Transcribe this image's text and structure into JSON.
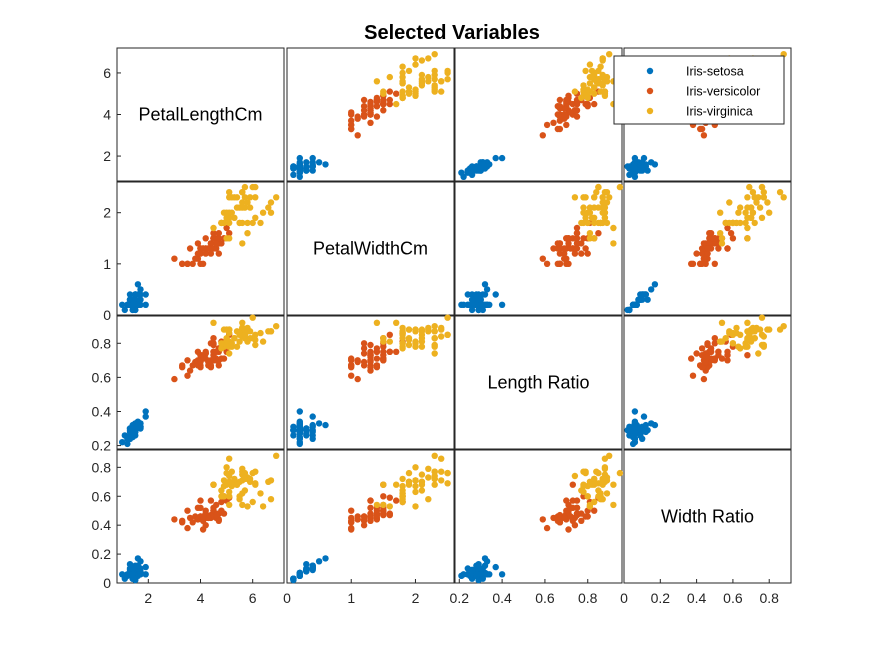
{
  "chart_data": {
    "type": "scatter",
    "title": "Selected Variables",
    "variables": [
      "PetalLengthCm",
      "PetalWidthCm",
      "Length Ratio",
      "Width Ratio"
    ],
    "series": [
      {
        "name": "Iris-setosa",
        "color": "#0072BD"
      },
      {
        "name": "Iris-versicolor",
        "color": "#D95319"
      },
      {
        "name": "Iris-virginica",
        "color": "#EDB120"
      }
    ],
    "axes": [
      {
        "lim": [
          0.8,
          7.2
        ],
        "ticks": [
          2,
          4,
          6
        ]
      },
      {
        "lim": [
          0,
          2.6
        ],
        "ticks": [
          0,
          1,
          2
        ]
      },
      {
        "lim": [
          0.18,
          0.96
        ],
        "ticks": [
          0.2,
          0.4,
          0.6,
          0.8
        ]
      },
      {
        "lim": [
          0,
          0.92
        ],
        "ticks": [
          0,
          0.2,
          0.4,
          0.6,
          0.8
        ]
      }
    ],
    "points": {
      "Iris-setosa": [
        [
          1.4,
          0.2,
          0.27,
          0.06
        ],
        [
          1.4,
          0.2,
          0.29,
          0.07
        ],
        [
          1.3,
          0.2,
          0.28,
          0.06
        ],
        [
          1.5,
          0.2,
          0.33,
          0.06
        ],
        [
          1.4,
          0.2,
          0.28,
          0.06
        ],
        [
          1.7,
          0.4,
          0.31,
          0.1
        ],
        [
          1.4,
          0.3,
          0.3,
          0.09
        ],
        [
          1.5,
          0.2,
          0.3,
          0.06
        ],
        [
          1.4,
          0.2,
          0.32,
          0.07
        ],
        [
          1.5,
          0.1,
          0.31,
          0.03
        ],
        [
          1.5,
          0.2,
          0.28,
          0.05
        ],
        [
          1.6,
          0.2,
          0.33,
          0.06
        ],
        [
          1.4,
          0.1,
          0.29,
          0.03
        ],
        [
          1.1,
          0.1,
          0.26,
          0.03
        ],
        [
          1.2,
          0.2,
          0.21,
          0.05
        ],
        [
          1.5,
          0.4,
          0.26,
          0.09
        ],
        [
          1.3,
          0.4,
          0.24,
          0.1
        ],
        [
          1.4,
          0.3,
          0.27,
          0.09
        ],
        [
          1.7,
          0.3,
          0.3,
          0.08
        ],
        [
          1.5,
          0.3,
          0.29,
          0.08
        ],
        [
          1.7,
          0.2,
          0.31,
          0.06
        ],
        [
          1.5,
          0.4,
          0.29,
          0.11
        ],
        [
          1.0,
          0.2,
          0.22,
          0.06
        ],
        [
          1.7,
          0.5,
          0.33,
          0.15
        ],
        [
          1.9,
          0.2,
          0.4,
          0.06
        ],
        [
          1.6,
          0.2,
          0.32,
          0.07
        ],
        [
          1.6,
          0.4,
          0.32,
          0.12
        ],
        [
          1.5,
          0.2,
          0.29,
          0.06
        ],
        [
          1.4,
          0.2,
          0.27,
          0.06
        ],
        [
          1.6,
          0.2,
          0.34,
          0.06
        ],
        [
          1.6,
          0.2,
          0.33,
          0.06
        ],
        [
          1.5,
          0.4,
          0.28,
          0.12
        ],
        [
          1.5,
          0.1,
          0.29,
          0.02
        ],
        [
          1.4,
          0.2,
          0.25,
          0.05
        ],
        [
          1.5,
          0.2,
          0.31,
          0.06
        ],
        [
          1.2,
          0.2,
          0.24,
          0.06
        ],
        [
          1.3,
          0.2,
          0.24,
          0.06
        ],
        [
          1.4,
          0.1,
          0.29,
          0.03
        ],
        [
          1.3,
          0.2,
          0.3,
          0.07
        ],
        [
          1.5,
          0.2,
          0.29,
          0.06
        ],
        [
          1.3,
          0.3,
          0.26,
          0.09
        ],
        [
          1.3,
          0.3,
          0.29,
          0.13
        ],
        [
          1.3,
          0.2,
          0.3,
          0.06
        ],
        [
          1.6,
          0.6,
          0.32,
          0.17
        ],
        [
          1.9,
          0.4,
          0.37,
          0.11
        ],
        [
          1.4,
          0.3,
          0.29,
          0.1
        ],
        [
          1.6,
          0.2,
          0.31,
          0.05
        ],
        [
          1.4,
          0.2,
          0.3,
          0.06
        ],
        [
          1.5,
          0.2,
          0.28,
          0.05
        ],
        [
          1.4,
          0.2,
          0.28,
          0.06
        ]
      ],
      "Iris-versicolor": [
        [
          4.7,
          1.4,
          0.67,
          0.44
        ],
        [
          4.5,
          1.5,
          0.7,
          0.47
        ],
        [
          4.9,
          1.5,
          0.71,
          0.48
        ],
        [
          4.0,
          1.3,
          0.73,
          0.57
        ],
        [
          4.6,
          1.5,
          0.71,
          0.54
        ],
        [
          4.5,
          1.3,
          0.79,
          0.46
        ],
        [
          4.7,
          1.6,
          0.75,
          0.48
        ],
        [
          3.3,
          1.0,
          0.67,
          0.42
        ],
        [
          4.6,
          1.3,
          0.7,
          0.45
        ],
        [
          3.9,
          1.4,
          0.75,
          0.52
        ],
        [
          3.5,
          1.0,
          0.7,
          0.5
        ],
        [
          4.2,
          1.5,
          0.71,
          0.5
        ],
        [
          4.0,
          1.0,
          0.67,
          0.45
        ],
        [
          4.7,
          1.4,
          0.77,
          0.48
        ],
        [
          3.6,
          1.3,
          0.64,
          0.45
        ],
        [
          4.4,
          1.4,
          0.66,
          0.45
        ],
        [
          4.5,
          1.5,
          0.8,
          0.5
        ],
        [
          4.1,
          1.0,
          0.71,
          0.37
        ],
        [
          4.5,
          1.5,
          0.73,
          0.68
        ],
        [
          3.9,
          1.1,
          0.7,
          0.44
        ],
        [
          4.8,
          1.8,
          0.81,
          0.56
        ],
        [
          4.0,
          1.3,
          0.66,
          0.46
        ],
        [
          4.9,
          1.5,
          0.78,
          0.6
        ],
        [
          4.7,
          1.2,
          0.77,
          0.43
        ],
        [
          4.3,
          1.3,
          0.67,
          0.45
        ],
        [
          4.4,
          1.4,
          0.67,
          0.47
        ],
        [
          4.8,
          1.4,
          0.71,
          0.5
        ],
        [
          5.0,
          1.7,
          0.75,
          0.57
        ],
        [
          4.5,
          1.5,
          0.75,
          0.52
        ],
        [
          3.5,
          1.0,
          0.61,
          0.38
        ],
        [
          3.8,
          1.1,
          0.69,
          0.46
        ],
        [
          3.7,
          1.0,
          0.67,
          0.42
        ],
        [
          3.9,
          1.2,
          0.67,
          0.44
        ],
        [
          5.1,
          1.6,
          0.85,
          0.59
        ],
        [
          4.5,
          1.5,
          0.83,
          0.5
        ],
        [
          4.5,
          1.6,
          0.75,
          0.47
        ],
        [
          4.7,
          1.5,
          0.7,
          0.48
        ],
        [
          4.4,
          1.3,
          0.7,
          0.57
        ],
        [
          4.1,
          1.3,
          0.73,
          0.43
        ],
        [
          4.0,
          1.3,
          0.73,
          0.52
        ],
        [
          4.4,
          1.2,
          0.8,
          0.46
        ],
        [
          4.6,
          1.4,
          0.75,
          0.47
        ],
        [
          4.0,
          1.2,
          0.69,
          0.46
        ],
        [
          3.3,
          1.0,
          0.66,
          0.43
        ],
        [
          4.2,
          1.3,
          0.75,
          0.48
        ],
        [
          4.2,
          1.2,
          0.74,
          0.4
        ],
        [
          4.2,
          1.3,
          0.74,
          0.45
        ],
        [
          4.3,
          1.3,
          0.69,
          0.45
        ],
        [
          3.0,
          1.1,
          0.59,
          0.44
        ],
        [
          4.1,
          1.3,
          0.72,
          0.46
        ]
      ],
      "Iris-virginica": [
        [
          6.0,
          2.5,
          0.95,
          0.76
        ],
        [
          5.1,
          1.9,
          0.88,
          0.7
        ],
        [
          5.9,
          2.1,
          0.83,
          0.7
        ],
        [
          5.6,
          1.8,
          0.89,
          0.62
        ],
        [
          5.8,
          2.2,
          0.89,
          0.73
        ],
        [
          6.6,
          2.1,
          0.87,
          0.7
        ],
        [
          4.5,
          1.7,
          0.92,
          0.68
        ],
        [
          6.3,
          1.8,
          0.86,
          0.62
        ],
        [
          5.8,
          1.8,
          0.87,
          0.72
        ],
        [
          6.1,
          2.5,
          0.85,
          0.69
        ],
        [
          5.1,
          2.0,
          0.78,
          0.63
        ],
        [
          5.3,
          1.9,
          0.83,
          0.7
        ],
        [
          5.5,
          2.1,
          0.81,
          0.7
        ],
        [
          5.0,
          2.0,
          0.88,
          0.8
        ],
        [
          5.1,
          2.4,
          0.88,
          0.86
        ],
        [
          5.3,
          2.3,
          0.83,
          0.72
        ],
        [
          5.5,
          1.8,
          0.85,
          0.6
        ],
        [
          6.7,
          2.2,
          0.87,
          0.58
        ],
        [
          6.9,
          2.3,
          0.9,
          0.88
        ],
        [
          5.0,
          1.5,
          0.83,
          0.68
        ],
        [
          5.7,
          2.3,
          0.83,
          0.72
        ],
        [
          4.9,
          2.0,
          0.88,
          0.71
        ],
        [
          6.7,
          2.0,
          0.87,
          0.71
        ],
        [
          4.9,
          1.8,
          0.78,
          0.67
        ],
        [
          5.7,
          2.1,
          0.85,
          0.64
        ],
        [
          6.0,
          1.8,
          0.83,
          0.56
        ],
        [
          4.8,
          1.8,
          0.77,
          0.64
        ],
        [
          4.9,
          1.8,
          0.8,
          0.6
        ],
        [
          5.6,
          2.1,
          0.88,
          0.75
        ],
        [
          5.8,
          1.6,
          0.81,
          0.53
        ],
        [
          6.1,
          1.9,
          0.82,
          0.68
        ],
        [
          6.4,
          2.0,
          0.81,
          0.53
        ],
        [
          5.6,
          2.2,
          0.88,
          0.79
        ],
        [
          5.1,
          1.5,
          0.81,
          0.54
        ],
        [
          5.6,
          1.4,
          0.92,
          0.54
        ],
        [
          6.1,
          2.3,
          0.79,
          0.77
        ],
        [
          5.6,
          2.4,
          0.89,
          0.71
        ],
        [
          5.5,
          1.8,
          0.86,
          0.58
        ],
        [
          4.8,
          1.8,
          0.8,
          0.6
        ],
        [
          5.4,
          2.1,
          0.78,
          0.68
        ],
        [
          5.6,
          2.4,
          0.84,
          0.77
        ],
        [
          5.1,
          2.3,
          0.74,
          0.74
        ],
        [
          5.1,
          1.9,
          0.88,
          0.7
        ],
        [
          5.9,
          2.3,
          0.87,
          0.72
        ],
        [
          5.7,
          2.5,
          0.85,
          0.76
        ],
        [
          5.2,
          2.3,
          0.78,
          0.77
        ],
        [
          5.0,
          1.9,
          0.79,
          0.76
        ],
        [
          5.2,
          2.0,
          0.8,
          0.67
        ],
        [
          5.4,
          2.3,
          0.87,
          0.68
        ],
        [
          5.1,
          1.8,
          0.86,
          0.6
        ]
      ]
    },
    "legend_position": "top-right"
  }
}
